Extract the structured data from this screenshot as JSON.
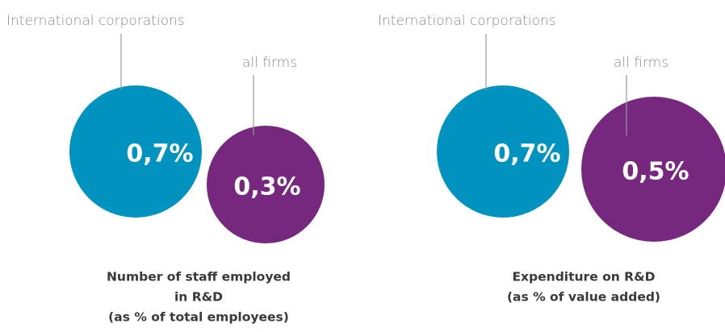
{
  "chart_data": [
    {
      "type": "bubble",
      "title": [
        "Number of staff employed",
        "in R&D",
        "(as % of total employees)"
      ],
      "series": [
        {
          "name": "International corporations",
          "color": "#0093c0",
          "values": [
            0.7
          ],
          "value_labels": [
            "0,7%"
          ]
        },
        {
          "name": "all firms",
          "color": "#76287f",
          "values": [
            0.3
          ],
          "value_labels": [
            "0,3%"
          ]
        }
      ]
    },
    {
      "type": "bubble",
      "title": [
        "Expenditure on R&D",
        "(as % of value added)"
      ],
      "series": [
        {
          "name": "International corporations",
          "color": "#0093c0",
          "values": [
            0.7
          ],
          "value_labels": [
            "0,7%"
          ]
        },
        {
          "name": "all firms",
          "color": "#76287f",
          "values": [
            0.5
          ],
          "value_labels": [
            "0,5%"
          ]
        }
      ]
    }
  ]
}
